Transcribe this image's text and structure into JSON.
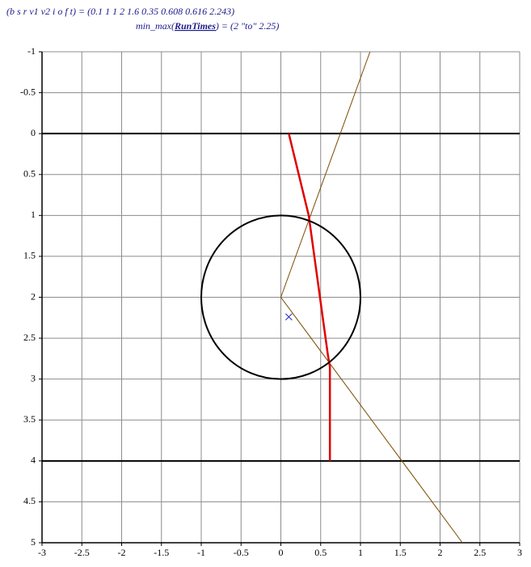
{
  "header": {
    "line1": "(b  s  r  v1  v2  i  o  f  t) = (0.1   1   1   2   1.6   0.35   0.608   0.616   2.243)",
    "line2_before": "min_max(",
    "line2_bold": "RunTimes",
    "line2_after": ") = (2   \"to\"   2.25)"
  },
  "chart_data": {
    "type": "line",
    "xlim": [
      -3,
      3
    ],
    "ylim": [
      5,
      -1
    ],
    "xticks": [
      -3,
      -2.5,
      -2,
      -1.5,
      -1,
      -0.5,
      0,
      0.5,
      1,
      1.5,
      2,
      2.5,
      3
    ],
    "yticks": [
      5,
      4.5,
      4,
      3.5,
      3,
      2.5,
      2,
      1.5,
      1,
      0.5,
      0,
      -0.5,
      -1
    ],
    "grid": true,
    "series": [
      {
        "x": [
          -3,
          3
        ],
        "values": [
          0,
          0
        ],
        "color": "#000000",
        "width": 2
      },
      {
        "x": [
          -3,
          3
        ],
        "values": [
          4,
          4
        ],
        "color": "#000000",
        "width": 2
      },
      {
        "x": [
          1.12,
          0,
          2.28
        ],
        "values": [
          -1,
          2,
          5
        ],
        "color": "#7a4a00",
        "width": 1
      },
      {
        "x": [
          0.1,
          0.35,
          0.59,
          0.616,
          0.616
        ],
        "values": [
          0,
          1,
          2.7,
          2.85,
          4
        ],
        "color": "#e00000",
        "width": 2.5
      }
    ],
    "circles": [
      {
        "cx": 0,
        "cy": 2,
        "r": 1,
        "color": "#000000"
      }
    ],
    "points": [
      {
        "x": 0.1,
        "y": 2.24,
        "color": "#2828c8"
      }
    ]
  }
}
